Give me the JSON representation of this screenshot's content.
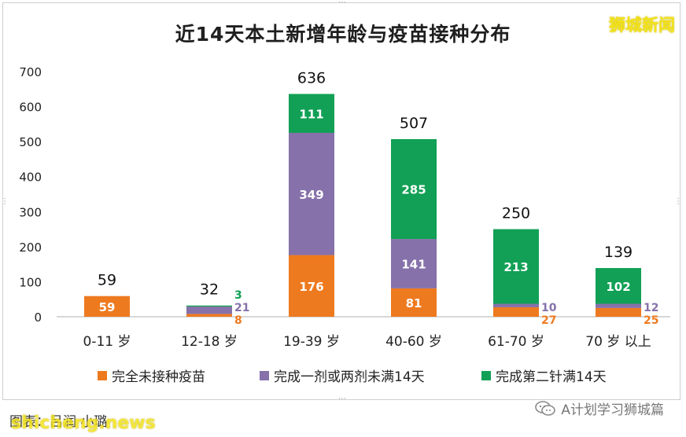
{
  "chart_data": {
    "type": "bar",
    "stacked": true,
    "title": "近14天本土新增年龄与疫苗接种分布",
    "categories": [
      "0-11 岁",
      "12-18 岁",
      "19-39 岁",
      "40-60 岁",
      "61-70 岁",
      "70 岁 以上"
    ],
    "totals": [
      59,
      32,
      636,
      507,
      250,
      139
    ],
    "series": [
      {
        "name": "完全未接种疫苗",
        "color": "#ee7a1f",
        "values": [
          59,
          8,
          176,
          81,
          27,
          25
        ]
      },
      {
        "name": "完成一剂或两剂未满14天",
        "color": "#8671aa",
        "values": [
          0,
          21,
          349,
          141,
          10,
          12
        ]
      },
      {
        "name": "完成第二针满14天",
        "color": "#11a055",
        "values": [
          0,
          3,
          111,
          285,
          213,
          102
        ]
      }
    ],
    "yticks": [
      0,
      100,
      200,
      300,
      400,
      500,
      600,
      700
    ],
    "ylim": [
      0,
      700
    ],
    "legend_position": "bottom",
    "grid": false
  },
  "watermark_top": "狮城新闻",
  "caption": "图表：吕润 小璐",
  "watermark_bottom": "shicheng.news",
  "wechat_label": "A计划学习狮城篇",
  "colors": {
    "tick_text": "#222222",
    "axis_line": "#bfbfbf",
    "total_label": "#111111"
  }
}
